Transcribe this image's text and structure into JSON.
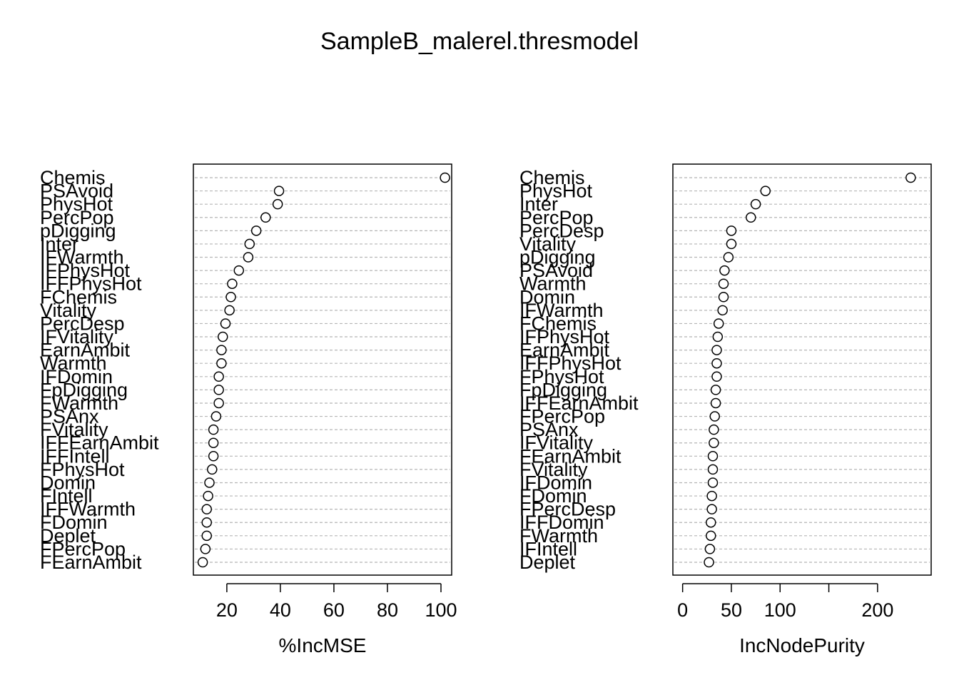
{
  "title": "SampleB_malerel.thresmodel",
  "chart_data": [
    {
      "type": "scatter",
      "style": "dotchart",
      "xlabel": "%IncMSE",
      "xlim": [
        7.5,
        104
      ],
      "xticks": [
        20,
        40,
        60,
        80,
        100
      ],
      "grid": true,
      "categories": [
        "Chemis",
        "PSAvoid",
        "PhysHot",
        "PercPop",
        "pDigging",
        "Inter",
        "IFWarmth",
        "IFPhysHot",
        "IFFPhysHot",
        "FChemis",
        "Vitality",
        "PercDesp",
        "IFVitality",
        "EarnAmbit",
        "Warmth",
        "IFDomin",
        "FpDigging",
        "FWarmth",
        "PSAnx",
        "FVitality",
        "IFFEarnAmbit",
        "IFFIntell",
        "FPhysHot",
        "Domin",
        "FIntell",
        "IFFWarmth",
        "FDomin",
        "Deplet",
        "FPercPop",
        "FEarnAmbit"
      ],
      "values": [
        101.5,
        39.5,
        39.0,
        34.5,
        31.0,
        28.5,
        28.0,
        24.5,
        22.0,
        21.5,
        21.0,
        19.5,
        18.5,
        18.0,
        18.0,
        17.0,
        17.0,
        17.0,
        16.0,
        15.0,
        15.0,
        15.0,
        14.5,
        13.5,
        13.0,
        12.5,
        12.5,
        12.5,
        12.0,
        11.0
      ]
    },
    {
      "type": "scatter",
      "style": "dotchart",
      "xlabel": "IncNodePurity",
      "xlim": [
        -10,
        255
      ],
      "xticks": [
        0,
        50,
        100,
        200
      ],
      "xtick_marks": [
        0,
        50,
        100,
        150,
        200
      ],
      "grid": true,
      "categories": [
        "Chemis",
        "PhysHot",
        "Inter",
        "PercPop",
        "PercDesp",
        "Vitality",
        "pDigging",
        "PSAvoid",
        "Warmth",
        "Domin",
        "IFWarmth",
        "FChemis",
        "IFPhysHot",
        "EarnAmbit",
        "IFFPhysHot",
        "FPhysHot",
        "FpDigging",
        "IFFEarnAmbit",
        "FPercPop",
        "PSAnx",
        "IFVitality",
        "FEarnAmbit",
        "FVitality",
        "IFDomin",
        "FDomin",
        "FPercDesp",
        "IFFDomin",
        "FWarmth",
        "IFIntell",
        "Deplet"
      ],
      "values": [
        234,
        85,
        75,
        70,
        50,
        50,
        47,
        43,
        42,
        42,
        41,
        37,
        36,
        35,
        35,
        35,
        34,
        34,
        33,
        32,
        32,
        31,
        31,
        31,
        30,
        30,
        29,
        29,
        28,
        27
      ]
    }
  ]
}
